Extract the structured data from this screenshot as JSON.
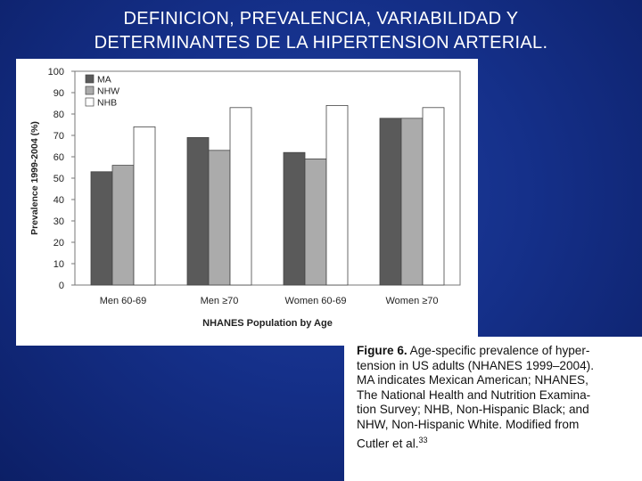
{
  "slide": {
    "title_line1": "DEFINICION, PREVALENCIA, VARIABILIDAD  Y",
    "title_line2": "DETERMINANTES DE LA HIPERTENSION ARTERIAL."
  },
  "caption": {
    "figure_label": "Figure 6.",
    "lines": [
      " Age-specific prevalence of hyper-",
      "tension in US adults (NHANES 1999–2004).",
      "MA indicates Mexican American; NHANES,",
      "The National Health and Nutrition Examina-",
      "tion Survey; NHB, Non-Hispanic Black; and",
      "NHW, Non-Hispanic White. Modified from",
      "Cutler et al."
    ],
    "superscript": "33"
  },
  "colors": {
    "MA": "#5a5a5a",
    "NHW": "#ababab",
    "NHB": "#ffffff",
    "frame": "#777777"
  },
  "chart_data": {
    "type": "bar",
    "categories": [
      "Men 60-69",
      "Men ≥70",
      "Women 60-69",
      "Women ≥70"
    ],
    "series": [
      {
        "name": "MA",
        "values": [
          53,
          69,
          62,
          78
        ]
      },
      {
        "name": "NHW",
        "values": [
          56,
          63,
          59,
          78
        ]
      },
      {
        "name": "NHB",
        "values": [
          74,
          83,
          84,
          83
        ]
      }
    ],
    "xlabel": "NHANES Population by Age",
    "ylabel": "Prevalence 1999-2004 (%)",
    "ylim": [
      0,
      100
    ],
    "yticks": [
      0,
      10,
      20,
      30,
      40,
      50,
      60,
      70,
      80,
      90,
      100
    ],
    "grid": false,
    "legend": "top-left"
  }
}
